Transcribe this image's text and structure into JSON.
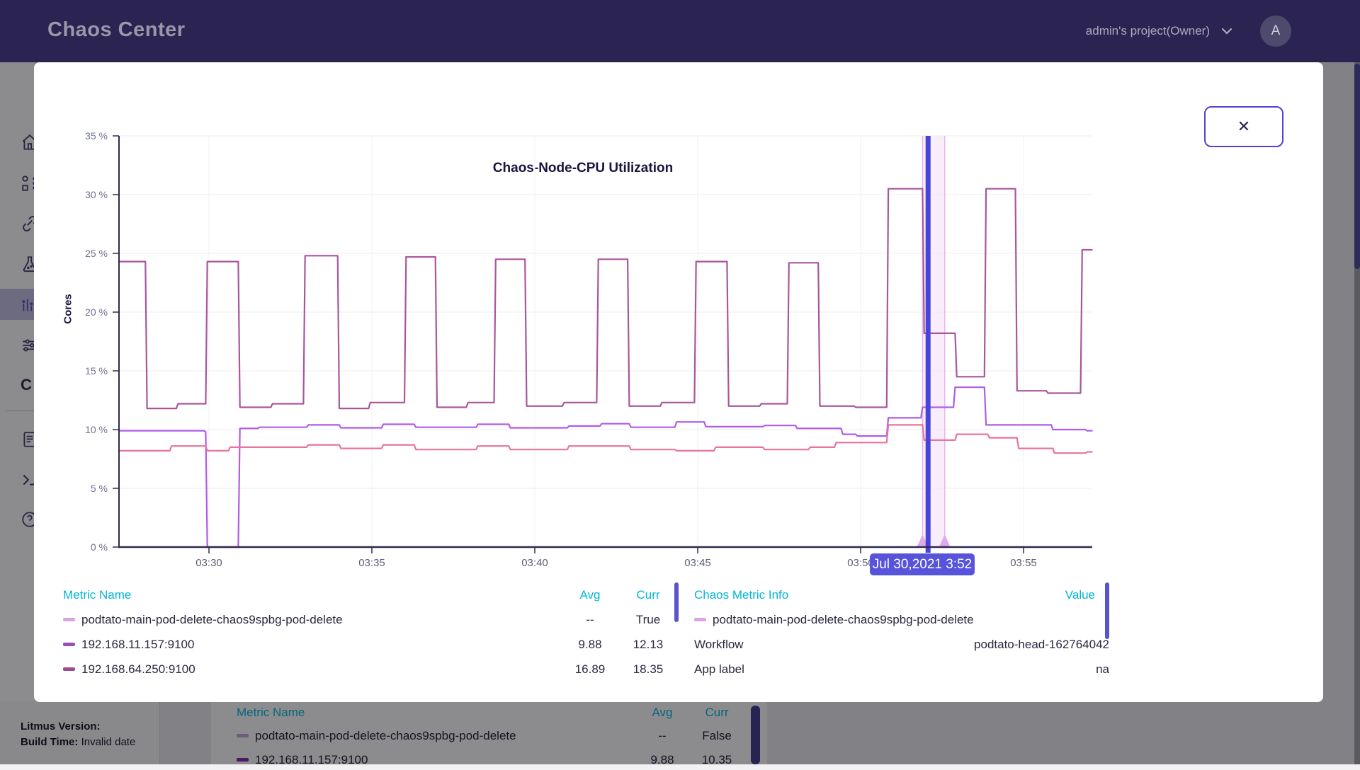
{
  "header": {
    "app_title": "Chaos Center",
    "project_label": "admin's project(Owner)",
    "avatar_letter": "A"
  },
  "modal": {
    "close_label": "✕",
    "tooltip": "Jul 30,2021 3:52",
    "legend": {
      "headers": {
        "name": "Metric Name",
        "avg": "Avg",
        "curr": "Curr"
      },
      "rows": [
        {
          "name": "podtato-main-pod-delete-chaos9spbg-pod-delete",
          "avg": "--",
          "curr": "True",
          "swatch": "#d9a7e0"
        },
        {
          "name": "192.168.11.157:9100",
          "avg": "9.88",
          "curr": "12.13",
          "swatch": "#9b4dbb"
        },
        {
          "name": "192.168.64.250:9100",
          "avg": "16.89",
          "curr": "18.35",
          "swatch": "#9c4a92"
        }
      ]
    },
    "chaos_info": {
      "headers": {
        "name": "Chaos Metric Info",
        "value": "Value"
      },
      "rows": [
        {
          "label": "podtato-main-pod-delete-chaos9spbg-pod-delete",
          "value": "",
          "swatch": "#d9a7e0"
        },
        {
          "label": "Workflow",
          "value": "podtato-head-162764042"
        },
        {
          "label": "App label",
          "value": "na"
        }
      ]
    }
  },
  "chart_data": {
    "type": "line",
    "title": "Chaos-Node-CPU Utilization",
    "ylabel": "Cores",
    "ylim": [
      0,
      35
    ],
    "grid": true,
    "yticks": [
      {
        "v": 35,
        "label": "35 %"
      },
      {
        "v": 30,
        "label": "30 %"
      },
      {
        "v": 25,
        "label": "25 %"
      },
      {
        "v": 20,
        "label": "20 %"
      },
      {
        "v": 15,
        "label": "15 %"
      },
      {
        "v": 10,
        "label": "10 %"
      },
      {
        "v": 5,
        "label": "5 %"
      },
      {
        "v": 0,
        "label": "0 %"
      }
    ],
    "xticks": [
      {
        "t": 30,
        "label": "03:30"
      },
      {
        "t": 35,
        "label": "03:35"
      },
      {
        "t": 40,
        "label": "03:40"
      },
      {
        "t": 45,
        "label": "03:45"
      },
      {
        "t": 50,
        "label": "03:50"
      },
      {
        "t": 55,
        "label": "03:55"
      }
    ],
    "chaos_region": {
      "start_t": 51.9,
      "end_t": 52.58,
      "cursor_t": 52.07,
      "fill": "#f6e6f9",
      "edge": "#e4b6ef",
      "marker": "#dfa9ec",
      "cursor_color": "#4744d6",
      "tooltip": "Jul 30,2021 3:52"
    },
    "series": [
      {
        "name": "192.168.64.250:9100",
        "color": "#a8569e",
        "points": [
          [
            27.25,
            24.3
          ],
          [
            28.05,
            24.3
          ],
          [
            28.1,
            11.8
          ],
          [
            29.0,
            11.8
          ],
          [
            29.05,
            12.2
          ],
          [
            29.9,
            12.2
          ],
          [
            29.95,
            24.3
          ],
          [
            30.9,
            24.3
          ],
          [
            30.95,
            11.9
          ],
          [
            31.9,
            11.9
          ],
          [
            31.95,
            12.2
          ],
          [
            32.9,
            12.2
          ],
          [
            32.95,
            24.8
          ],
          [
            33.95,
            24.8
          ],
          [
            34.0,
            11.8
          ],
          [
            34.9,
            11.8
          ],
          [
            34.95,
            12.3
          ],
          [
            36.0,
            12.3
          ],
          [
            36.05,
            24.7
          ],
          [
            36.95,
            24.7
          ],
          [
            37.0,
            11.9
          ],
          [
            37.9,
            11.9
          ],
          [
            37.95,
            12.3
          ],
          [
            38.75,
            12.3
          ],
          [
            38.8,
            24.5
          ],
          [
            39.7,
            24.5
          ],
          [
            39.75,
            12.0
          ],
          [
            40.85,
            12.0
          ],
          [
            40.9,
            12.3
          ],
          [
            41.9,
            12.3
          ],
          [
            41.95,
            24.5
          ],
          [
            42.85,
            24.5
          ],
          [
            42.9,
            12.0
          ],
          [
            43.85,
            12.0
          ],
          [
            43.9,
            12.3
          ],
          [
            44.9,
            12.3
          ],
          [
            44.95,
            24.3
          ],
          [
            45.9,
            24.3
          ],
          [
            45.95,
            12.0
          ],
          [
            46.9,
            12.0
          ],
          [
            46.95,
            12.2
          ],
          [
            47.75,
            12.2
          ],
          [
            47.8,
            24.2
          ],
          [
            48.7,
            24.2
          ],
          [
            48.75,
            12.0
          ],
          [
            49.8,
            12.0
          ],
          [
            49.85,
            11.9
          ],
          [
            50.8,
            11.9
          ],
          [
            50.85,
            30.5
          ],
          [
            51.9,
            30.5
          ],
          [
            51.95,
            18.2
          ],
          [
            52.9,
            18.2
          ],
          [
            52.95,
            14.5
          ],
          [
            53.8,
            14.5
          ],
          [
            53.85,
            30.5
          ],
          [
            54.75,
            30.5
          ],
          [
            54.8,
            13.3
          ],
          [
            55.7,
            13.3
          ],
          [
            55.75,
            13.1
          ],
          [
            56.75,
            13.1
          ],
          [
            56.8,
            25.3
          ],
          [
            57.1,
            25.3
          ]
        ]
      },
      {
        "name": "192.168.11.157:9100",
        "color": "#b15ce6",
        "points": [
          [
            27.25,
            9.9
          ],
          [
            29.85,
            9.9
          ],
          [
            29.9,
            9.8
          ],
          [
            29.95,
            0
          ],
          [
            30.9,
            0
          ],
          [
            30.95,
            10.1
          ],
          [
            31.5,
            10.1
          ],
          [
            31.55,
            10.2
          ],
          [
            33.0,
            10.2
          ],
          [
            33.05,
            10.4
          ],
          [
            34.0,
            10.4
          ],
          [
            34.05,
            10.15
          ],
          [
            35.3,
            10.15
          ],
          [
            35.35,
            10.45
          ],
          [
            36.3,
            10.45
          ],
          [
            36.35,
            10.2
          ],
          [
            38.2,
            10.2
          ],
          [
            38.25,
            10.45
          ],
          [
            39.2,
            10.45
          ],
          [
            39.25,
            10.15
          ],
          [
            41.0,
            10.15
          ],
          [
            41.05,
            10.3
          ],
          [
            42.0,
            10.3
          ],
          [
            42.05,
            10.5
          ],
          [
            42.9,
            10.5
          ],
          [
            42.95,
            10.2
          ],
          [
            44.3,
            10.2
          ],
          [
            44.35,
            10.65
          ],
          [
            45.2,
            10.65
          ],
          [
            45.25,
            10.25
          ],
          [
            47.0,
            10.25
          ],
          [
            47.05,
            10.35
          ],
          [
            48.0,
            10.35
          ],
          [
            48.05,
            10.1
          ],
          [
            49.4,
            10.1
          ],
          [
            49.45,
            9.6
          ],
          [
            49.85,
            9.6
          ],
          [
            49.9,
            9.45
          ],
          [
            50.8,
            9.45
          ],
          [
            50.85,
            11.0
          ],
          [
            51.85,
            11.0
          ],
          [
            51.9,
            11.9
          ],
          [
            52.85,
            11.9
          ],
          [
            52.9,
            13.6
          ],
          [
            53.8,
            13.6
          ],
          [
            53.85,
            10.4
          ],
          [
            55.85,
            10.4
          ],
          [
            55.9,
            10.0
          ],
          [
            56.9,
            10.0
          ],
          [
            56.95,
            9.9
          ],
          [
            57.1,
            9.9
          ]
        ]
      },
      {
        "name": "podtato-main-pod-delete-chaos9spbg-pod-delete",
        "color": "#e8739f",
        "points": [
          [
            27.25,
            8.2
          ],
          [
            28.8,
            8.2
          ],
          [
            28.85,
            8.6
          ],
          [
            29.9,
            8.6
          ],
          [
            29.95,
            8.2
          ],
          [
            30.6,
            8.2
          ],
          [
            30.65,
            8.5
          ],
          [
            33.0,
            8.5
          ],
          [
            33.05,
            8.7
          ],
          [
            34.0,
            8.7
          ],
          [
            34.05,
            8.4
          ],
          [
            35.3,
            8.4
          ],
          [
            35.35,
            8.7
          ],
          [
            36.3,
            8.7
          ],
          [
            36.35,
            8.3
          ],
          [
            38.2,
            8.3
          ],
          [
            38.25,
            8.6
          ],
          [
            39.2,
            8.6
          ],
          [
            39.25,
            8.3
          ],
          [
            41.0,
            8.3
          ],
          [
            41.05,
            8.6
          ],
          [
            42.9,
            8.6
          ],
          [
            42.95,
            8.3
          ],
          [
            44.3,
            8.3
          ],
          [
            44.35,
            8.2
          ],
          [
            45.5,
            8.2
          ],
          [
            45.55,
            8.5
          ],
          [
            47.0,
            8.5
          ],
          [
            47.05,
            8.3
          ],
          [
            48.4,
            8.3
          ],
          [
            48.45,
            8.5
          ],
          [
            49.2,
            8.5
          ],
          [
            49.25,
            8.9
          ],
          [
            50.8,
            8.9
          ],
          [
            50.85,
            10.4
          ],
          [
            51.9,
            10.4
          ],
          [
            51.95,
            9.1
          ],
          [
            52.9,
            9.1
          ],
          [
            52.95,
            9.6
          ],
          [
            53.9,
            9.6
          ],
          [
            53.95,
            9.3
          ],
          [
            54.8,
            9.3
          ],
          [
            54.85,
            8.4
          ],
          [
            55.9,
            8.4
          ],
          [
            55.95,
            8.0
          ],
          [
            56.9,
            8.0
          ],
          [
            56.95,
            8.1
          ],
          [
            57.1,
            8.1
          ]
        ]
      }
    ]
  },
  "background": {
    "sidebar": {
      "c_label": "C"
    },
    "footer": {
      "version_label": "Litmus Version:",
      "build_label": "Build Time:",
      "build_value": " Invalid date"
    },
    "bottom_card": {
      "headers": {
        "name": "Metric Name",
        "avg": "Avg",
        "curr": "Curr"
      },
      "rows": [
        {
          "name": "podtato-main-pod-delete-chaos9spbg-pod-delete",
          "avg": "--",
          "curr": "False",
          "swatch": "#c9a0d8"
        },
        {
          "name": "192.168.11.157:9100",
          "avg": "9.88",
          "curr": "10.35",
          "swatch": "#7b2fa8"
        }
      ]
    }
  }
}
